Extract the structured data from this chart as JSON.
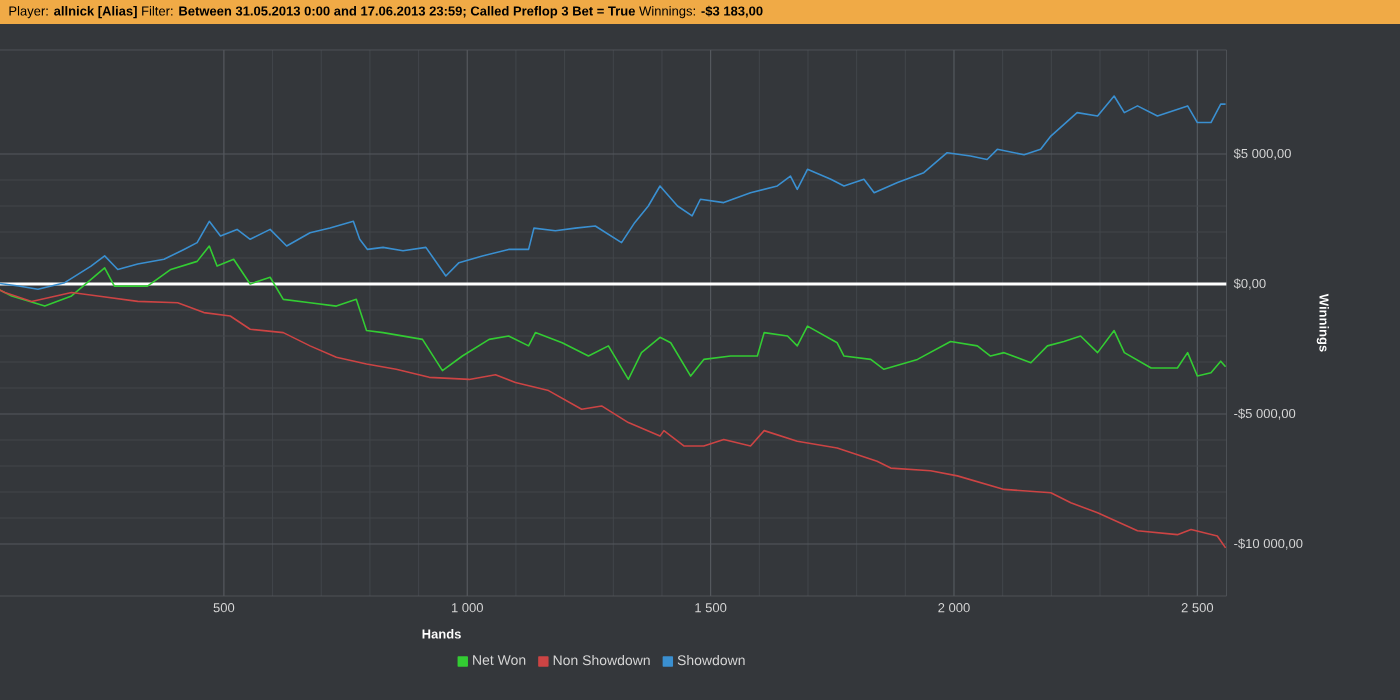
{
  "chart_data": {
    "type": "line",
    "title": "Player: **allnick [Alias]** Filter: **Between 31.05.2013 0:00 and 17.06.2013 23:59; Called Preflop 3 Bet = True** Winnings: **-$3 183,00**",
    "xlabel": "Hands",
    "ylabel": "Winnings",
    "xlim": [
      0,
      2560
    ],
    "ylim": [
      -12000,
      9000
    ],
    "xticks": [
      500,
      {
        "value": 1000,
        "label": "1 000"
      },
      {
        "value": 1500,
        "label": "1 500"
      },
      {
        "value": 2000,
        "label": "2 000"
      },
      {
        "value": 2500,
        "label": "2 500"
      }
    ],
    "yticks": [
      {
        "value": -10000,
        "label": "-$10 000,00"
      },
      {
        "value": -5000,
        "label": "-$5 000,00"
      },
      {
        "value": 0,
        "label": "$0,00"
      },
      {
        "value": 5000,
        "label": "$5 000,00"
      }
    ],
    "grid": true,
    "legend": "bottom",
    "marker": "none",
    "line_style": "solid",
    "ref_lines": [
      {
        "axis": "y",
        "value": 0,
        "color": "#ffffff"
      }
    ],
    "series": [
      {
        "name": "Net Won",
        "color": "#33cc33",
        "x": [
          0,
          10,
          64,
          132,
          187,
          255,
          275,
          343,
          391,
          445,
          470,
          486,
          520,
          554,
          595,
          622,
          677,
          731,
          772,
          793,
          827,
          908,
          949,
          990,
          1045,
          1085,
          1126,
          1140,
          1195,
          1249,
          1290,
          1331,
          1358,
          1396,
          1418,
          1459,
          1486,
          1541,
          1596,
          1610,
          1658,
          1678,
          1699,
          1760,
          1774,
          1829,
          1856,
          1925,
          1993,
          2048,
          2075,
          2103,
          2158,
          2192,
          2226,
          2260,
          2295,
          2329,
          2350,
          2405,
          2459,
          2480,
          2500,
          2528,
          2548,
          2558
        ],
        "values": [
          0,
          50,
          -460,
          -850,
          -460,
          620,
          -80,
          -80,
          560,
          870,
          1460,
          690,
          950,
          0,
          260,
          -590,
          -720,
          -850,
          -590,
          -1790,
          -1870,
          -2130,
          -3330,
          -2770,
          -2130,
          -2000,
          -2380,
          -1870,
          -2260,
          -2770,
          -2380,
          -3670,
          -2640,
          -2050,
          -2260,
          -3540,
          -2900,
          -2770,
          -2770,
          -1870,
          -2000,
          -2380,
          -1620,
          -2260,
          -2770,
          -2900,
          -3280,
          -2900,
          -2210,
          -2380,
          -2770,
          -2640,
          -3030,
          -2380,
          -2210,
          -2000,
          -2640,
          -1790,
          -2640,
          -3230,
          -3230,
          -2640,
          -3540,
          -3410,
          -2970,
          -3183
        ]
      },
      {
        "name": "Non Showdown",
        "color": "#cc4444",
        "x": [
          0,
          10,
          50,
          105,
          187,
          241,
          323,
          405,
          459,
          513,
          554,
          622,
          677,
          731,
          793,
          854,
          922,
          1004,
          1058,
          1099,
          1167,
          1235,
          1276,
          1331,
          1396,
          1404,
          1445,
          1486,
          1527,
          1582,
          1610,
          1678,
          1760,
          1842,
          1870,
          1952,
          2007,
          2103,
          2199,
          2240,
          2295,
          2377,
          2459,
          2487,
          2541,
          2558
        ],
        "values": [
          0,
          50,
          -330,
          -670,
          -330,
          -460,
          -670,
          -720,
          -1100,
          -1230,
          -1740,
          -1870,
          -2380,
          -2820,
          -3080,
          -3280,
          -3590,
          -3670,
          -3490,
          -3790,
          -4100,
          -4820,
          -4690,
          -5330,
          -5850,
          -5640,
          -6230,
          -6230,
          -5980,
          -6230,
          -5640,
          -6050,
          -6310,
          -6820,
          -7080,
          -7180,
          -7380,
          -7900,
          -8030,
          -8410,
          -8800,
          -9490,
          -9640,
          -9440,
          -9690,
          -10150
        ]
      },
      {
        "name": "Showdown",
        "color": "#3a8fd0",
        "x": [
          0,
          10,
          78,
          118,
          173,
          227,
          255,
          282,
          323,
          377,
          418,
          445,
          470,
          493,
          527,
          554,
          595,
          629,
          677,
          718,
          766,
          779,
          795,
          827,
          868,
          915,
          956,
          983,
          1031,
          1085,
          1126,
          1137,
          1181,
          1222,
          1263,
          1317,
          1344,
          1372,
          1396,
          1432,
          1462,
          1479,
          1527,
          1582,
          1637,
          1664,
          1678,
          1699,
          1747,
          1774,
          1815,
          1836,
          1884,
          1938,
          1986,
          2034,
          2068,
          2089,
          2144,
          2178,
          2199,
          2253,
          2295,
          2329,
          2350,
          2377,
          2418,
          2480,
          2500,
          2528,
          2548,
          2558
        ],
        "values": [
          0,
          100,
          -80,
          -200,
          50,
          690,
          1080,
          560,
          770,
          950,
          1330,
          1590,
          2410,
          1850,
          2100,
          1720,
          2100,
          1460,
          1970,
          2150,
          2410,
          1720,
          1330,
          1410,
          1280,
          1410,
          310,
          820,
          1080,
          1330,
          1330,
          2150,
          2050,
          2150,
          2230,
          1590,
          2360,
          3000,
          3770,
          3000,
          2620,
          3260,
          3130,
          3510,
          3770,
          4150,
          3640,
          4410,
          4030,
          3770,
          4030,
          3510,
          3900,
          4280,
          5050,
          4920,
          4790,
          5180,
          4970,
          5180,
          5690,
          6590,
          6460,
          7230,
          6590,
          6850,
          6460,
          6850,
          6210,
          6210,
          6920,
          6920
        ]
      }
    ]
  }
}
